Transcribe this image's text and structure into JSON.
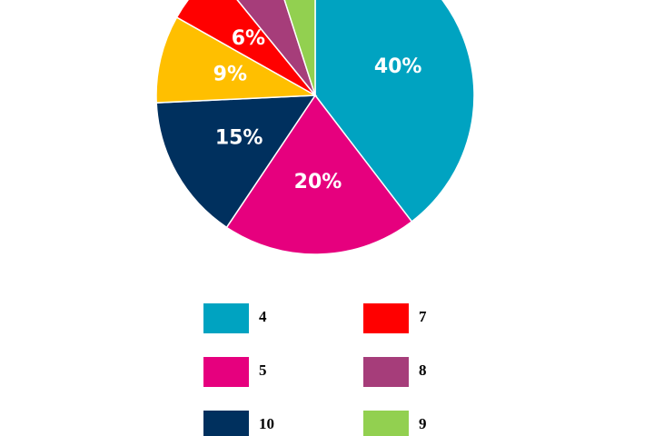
{
  "chart_data": {
    "type": "pie",
    "categories": [
      "4",
      "5",
      "10",
      null,
      "7",
      "8",
      "9"
    ],
    "values": [
      40,
      20,
      15,
      9,
      6,
      6,
      5
    ],
    "value_labels": [
      "40%",
      "20%",
      "15%",
      "9%",
      "6%",
      null,
      null
    ],
    "colors": [
      "#00a3c1",
      "#e6007e",
      "#00305e",
      "#ffbf00",
      "#ff0000",
      "#a63d7a",
      "#92d050"
    ],
    "legend": "bottom"
  }
}
